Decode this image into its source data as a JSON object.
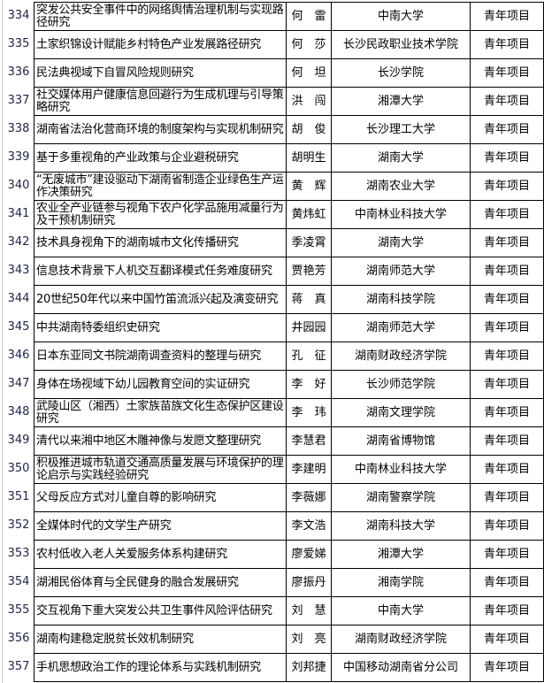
{
  "rows": [
    {
      "no": "334",
      "title": "突发公共安全事件中的网络舆情治理机制与实现路径研究",
      "person": "何　雷",
      "institution": "中南大学",
      "type": "青年项目"
    },
    {
      "no": "335",
      "title": "土家织锦设计赋能乡村特色产业发展路径研究",
      "person": "何　莎",
      "institution": "长沙民政职业技术学院",
      "type": "青年项目"
    },
    {
      "no": "336",
      "title": "民法典视域下自冒风险规则研究",
      "person": "何　坦",
      "institution": "长沙学院",
      "type": "青年项目"
    },
    {
      "no": "337",
      "title": "社交媒体用户健康信息回避行为生成机理与引导策略研究",
      "person": "洪　闯",
      "institution": "湘潭大学",
      "type": "青年项目"
    },
    {
      "no": "338",
      "title": "湖南省法治化营商环境的制度架构与实现机制研究",
      "person": "胡　俊",
      "institution": "长沙理工大学",
      "type": "青年项目"
    },
    {
      "no": "339",
      "title": "基于多重视角的产业政策与企业避税研究",
      "person": "胡明生",
      "institution": "湖南大学",
      "type": "青年项目"
    },
    {
      "no": "340",
      "title": "“无废城市”建设驱动下湖南省制造企业绿色生产运作决策研究",
      "person": "黄　辉",
      "institution": "湖南农业大学",
      "type": "青年项目"
    },
    {
      "no": "341",
      "title": "农业全产业链参与视角下农户化学品施用减量行为及干预机制研究",
      "person": "黄炜虹",
      "institution": "中南林业科技大学",
      "type": "青年项目"
    },
    {
      "no": "342",
      "title": "技术具身视角下的湖南城市文化传播研究",
      "person": "季凌霄",
      "institution": "湖南大学",
      "type": "青年项目"
    },
    {
      "no": "343",
      "title": "信息技术背景下人机交互翻译模式任务难度研究",
      "person": "贾艳芳",
      "institution": "湖南师范大学",
      "type": "青年项目"
    },
    {
      "no": "344",
      "title": "20世纪50年代以来中国竹笛流派兴起及演变研究",
      "person": "蒋　真",
      "institution": "湖南科技学院",
      "type": "青年项目"
    },
    {
      "no": "345",
      "title": "中共湖南特委组织史研究",
      "person": "井园园",
      "institution": "湖南师范大学",
      "type": "青年项目"
    },
    {
      "no": "346",
      "title": "日本东亚同文书院湖南调查资料的整理与研究",
      "person": "孔　征",
      "institution": "湖南财政经济学院",
      "type": "青年项目"
    },
    {
      "no": "347",
      "title": "身体在场视域下幼儿园教育空间的实证研究",
      "person": "李　好",
      "institution": "长沙师范学院",
      "type": "青年项目"
    },
    {
      "no": "348",
      "title": "武陵山区（湘西）土家族苗族文化生态保护区建设研究",
      "person": "李　玮",
      "institution": "湖南文理学院",
      "type": "青年项目"
    },
    {
      "no": "349",
      "title": "清代以来湘中地区木雕神像与发愿文整理研究",
      "person": "李慧君",
      "institution": "湖南省博物馆",
      "type": "青年项目"
    },
    {
      "no": "350",
      "title": "积极推进城市轨道交通高质量发展与环境保护的理论启示与实践经验研究",
      "person": "李建明",
      "institution": "中南林业科技大学",
      "type": "青年项目"
    },
    {
      "no": "351",
      "title": "父母反应方式对儿童自尊的影响研究",
      "person": "李薇娜",
      "institution": "湖南警察学院",
      "type": "青年项目"
    },
    {
      "no": "352",
      "title": "全媒体时代的文学生产研究",
      "person": "李文浩",
      "institution": "湖南科技大学",
      "type": "青年项目"
    },
    {
      "no": "353",
      "title": "农村低收入老人关爱服务体系构建研究",
      "person": "廖爱娣",
      "institution": "湘潭大学",
      "type": "青年项目"
    },
    {
      "no": "354",
      "title": "湖湘民俗体育与全民健身的融合发展研究",
      "person": "廖振丹",
      "institution": "湘南学院",
      "type": "青年项目"
    },
    {
      "no": "355",
      "title": "交互视角下重大突发公共卫生事件风险评估研究",
      "person": "刘　慧",
      "institution": "中南大学",
      "type": "青年项目"
    },
    {
      "no": "356",
      "title": "湖南构建稳定脱贫长效机制研究",
      "person": "刘　亮",
      "institution": "湖南财政经济学院",
      "type": "青年项目"
    },
    {
      "no": "357",
      "title": "手机思想政治工作的理论体系与实践机制研究",
      "person": "刘邦捷",
      "institution": "中国移动湖南省分公司",
      "type": "青年项目"
    }
  ]
}
